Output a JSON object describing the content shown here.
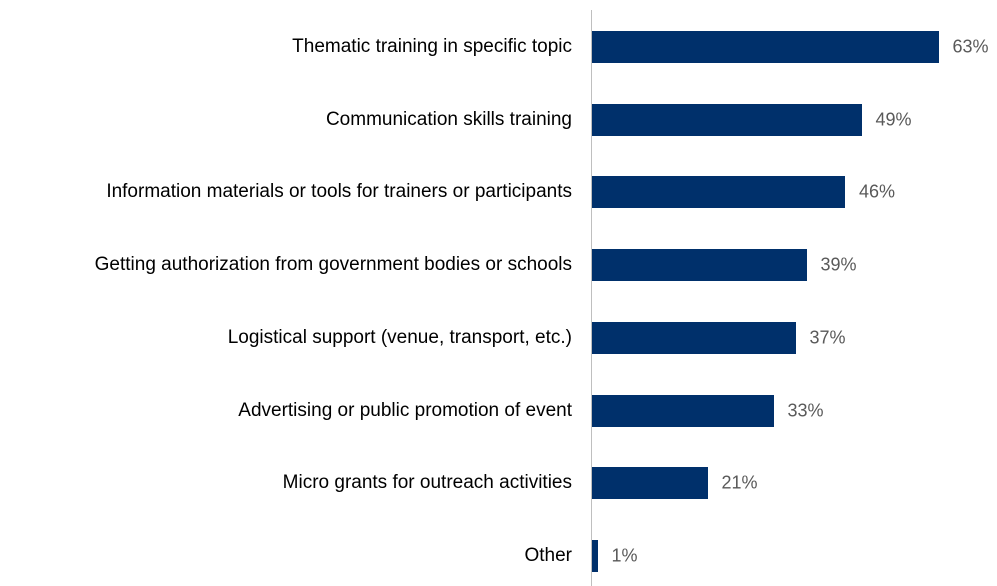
{
  "chart_data": {
    "type": "bar",
    "orientation": "horizontal",
    "categories": [
      "Thematic training in specific topic",
      "Communication skills training",
      "Information materials or tools for trainers or participants",
      "Getting authorization from government bodies or schools",
      "Logistical support (venue, transport, etc.)",
      "Advertising or public promotion of event",
      "Micro grants for outreach activities",
      "Other"
    ],
    "values": [
      63,
      49,
      46,
      39,
      37,
      33,
      21,
      1
    ],
    "value_labels": [
      "63%",
      "49%",
      "46%",
      "39%",
      "37%",
      "33%",
      "21%",
      "1%"
    ],
    "color": "#00306b"
  }
}
